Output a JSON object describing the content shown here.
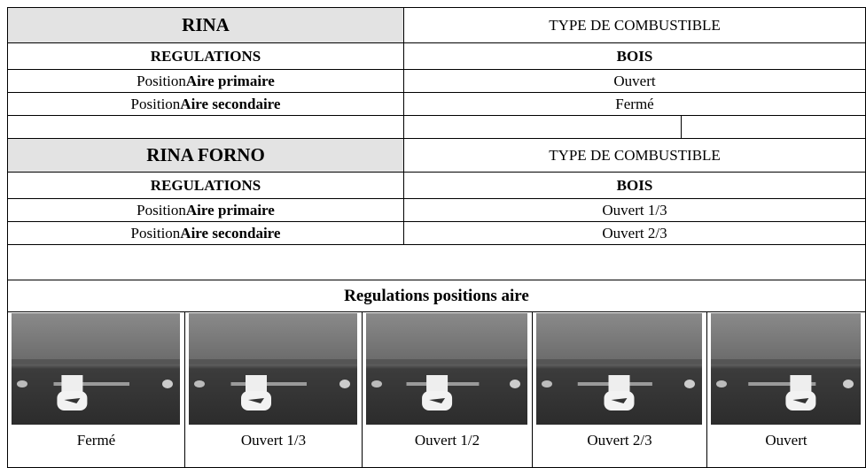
{
  "sections": [
    {
      "title": "RINA",
      "fuel_header": "TYPE DE COMBUSTIBLE",
      "regulations_label": "REGULATIONS",
      "fuel": "BOIS",
      "rows": [
        {
          "prefix": "Position",
          "label": "Aire primaire",
          "value": "Ouvert"
        },
        {
          "prefix": "Position",
          "label": "Aire secondaire",
          "value": "Fermé"
        }
      ]
    },
    {
      "title": "RINA FORNO",
      "fuel_header": "TYPE DE COMBUSTIBLE",
      "regulations_label": "REGULATIONS",
      "fuel": "BOIS",
      "rows": [
        {
          "prefix": "Position",
          "label": "Aire primaire",
          "value": "Ouvert 1/3"
        },
        {
          "prefix": "Position",
          "label": "Aire secondaire",
          "value": "Ouvert 2/3"
        }
      ]
    }
  ],
  "positions": {
    "title": "Regulations positions aire",
    "items": [
      "Fermé",
      "Ouvert 1/3",
      "Ouvert 1/2",
      "Ouvert 2/3",
      "Ouvert"
    ]
  }
}
